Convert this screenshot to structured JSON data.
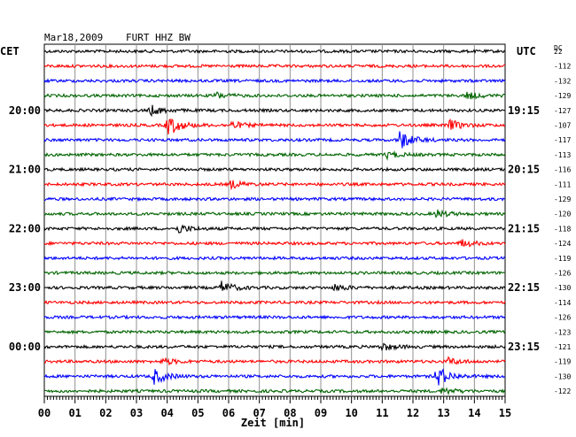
{
  "header": {
    "date": "Mar18,2009",
    "station": "FURT HHZ BW",
    "left_tz": "CET",
    "right_tz": "UTC",
    "dc_label": "DC"
  },
  "chart_data": {
    "type": "line",
    "xlabel": "Zeit [min]",
    "x_ticks": [
      "00",
      "01",
      "02",
      "03",
      "04",
      "05",
      "06",
      "07",
      "08",
      "09",
      "10",
      "11",
      "12",
      "13",
      "14",
      "15"
    ],
    "xlim": [
      0,
      15
    ],
    "trace_colors": [
      "#000000",
      "#ff0000",
      "#0000ff",
      "#006400"
    ],
    "grid": true,
    "traces": [
      {
        "dc": "22",
        "color": "#000000"
      },
      {
        "dc": "-112",
        "color": "#ff0000"
      },
      {
        "dc": "-132",
        "color": "#0000ff"
      },
      {
        "dc": "-129",
        "color": "#006400"
      },
      {
        "dc": "-127",
        "color": "#000000",
        "left_time": "20:00",
        "right_time": "19:15"
      },
      {
        "dc": "-107",
        "color": "#ff0000"
      },
      {
        "dc": "-117",
        "color": "#0000ff"
      },
      {
        "dc": "-113",
        "color": "#006400"
      },
      {
        "dc": "-116",
        "color": "#000000",
        "left_time": "21:00",
        "right_time": "20:15"
      },
      {
        "dc": "-111",
        "color": "#ff0000"
      },
      {
        "dc": "-129",
        "color": "#0000ff"
      },
      {
        "dc": "-120",
        "color": "#006400"
      },
      {
        "dc": "-118",
        "color": "#000000",
        "left_time": "22:00",
        "right_time": "21:15"
      },
      {
        "dc": "-124",
        "color": "#ff0000"
      },
      {
        "dc": "-119",
        "color": "#0000ff"
      },
      {
        "dc": "-126",
        "color": "#006400"
      },
      {
        "dc": "-130",
        "color": "#000000",
        "left_time": "23:00",
        "right_time": "22:15"
      },
      {
        "dc": "-114",
        "color": "#ff0000"
      },
      {
        "dc": "-126",
        "color": "#0000ff"
      },
      {
        "dc": "-123",
        "color": "#006400"
      },
      {
        "dc": "-121",
        "color": "#000000",
        "left_time": "00:00",
        "right_time": "23:15"
      },
      {
        "dc": "-119",
        "color": "#ff0000"
      },
      {
        "dc": "-130",
        "color": "#0000ff"
      },
      {
        "dc": "-122",
        "color": "#006400"
      }
    ],
    "events": [
      {
        "trace": 4,
        "minute": 3.5,
        "amp": 0.45
      },
      {
        "trace": 5,
        "minute": 4.05,
        "amp": 1.0
      },
      {
        "trace": 5,
        "minute": 6.1,
        "amp": 0.35
      },
      {
        "trace": 5,
        "minute": 13.2,
        "amp": 0.5
      },
      {
        "trace": 6,
        "minute": 11.6,
        "amp": 0.9
      },
      {
        "trace": 7,
        "minute": 11.2,
        "amp": 0.3
      },
      {
        "trace": 3,
        "minute": 5.6,
        "amp": 0.3
      },
      {
        "trace": 3,
        "minute": 13.8,
        "amp": 0.3
      },
      {
        "trace": 9,
        "minute": 6.1,
        "amp": 0.35
      },
      {
        "trace": 11,
        "minute": 12.8,
        "amp": 0.35
      },
      {
        "trace": 12,
        "minute": 4.4,
        "amp": 0.4
      },
      {
        "trace": 13,
        "minute": 13.6,
        "amp": 0.35
      },
      {
        "trace": 16,
        "minute": 5.8,
        "amp": 0.55
      },
      {
        "trace": 16,
        "minute": 9.5,
        "amp": 0.3
      },
      {
        "trace": 20,
        "minute": 11.0,
        "amp": 0.35
      },
      {
        "trace": 22,
        "minute": 3.6,
        "amp": 0.7
      },
      {
        "trace": 22,
        "minute": 12.8,
        "amp": 1.0
      },
      {
        "trace": 21,
        "minute": 3.9,
        "amp": 0.3
      },
      {
        "trace": 21,
        "minute": 13.2,
        "amp": 0.3
      },
      {
        "trace": 23,
        "minute": 13.0,
        "amp": 0.3
      }
    ]
  }
}
